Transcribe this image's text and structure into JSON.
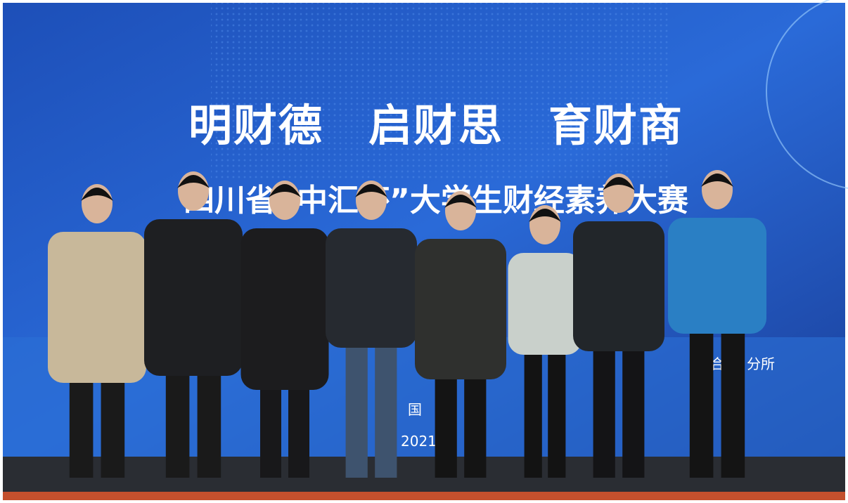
{
  "banner": {
    "headline": "明财德　启财思　育财商",
    "subtitle": "四川省“中汇杯”大学生财经素养大赛",
    "fragments": [
      "汇",
      "合伙",
      "分所",
      "国",
      "2021"
    ]
  }
}
